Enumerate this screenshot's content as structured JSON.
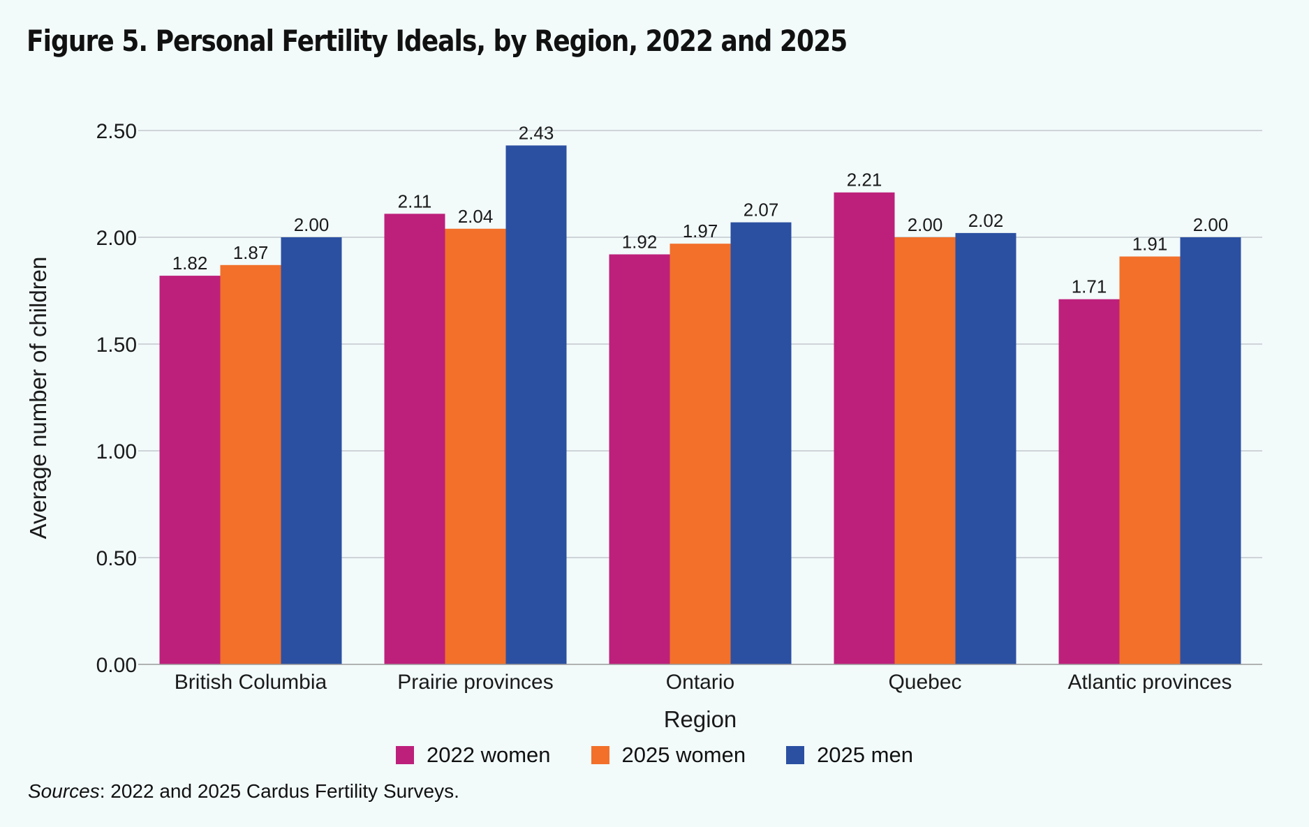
{
  "chart_data": {
    "type": "bar",
    "title": "Figure 5. Personal Fertility Ideals, by Region, 2022 and 2025",
    "xlabel": "Region",
    "ylabel": "Average number of children",
    "ylim": [
      0,
      2.5
    ],
    "yticks": [
      "0.00",
      "0.50",
      "1.00",
      "1.50",
      "2.00",
      "2.50"
    ],
    "grid": true,
    "legend_position": "bottom",
    "categories": [
      "British Columbia",
      "Prairie provinces",
      "Ontario",
      "Quebec",
      "Atlantic provinces"
    ],
    "series": [
      {
        "name": "2022 women",
        "color": "#bd207b",
        "values": [
          1.82,
          2.11,
          1.92,
          2.21,
          1.71
        ],
        "labels": [
          "1.82",
          "2.11",
          "1.92",
          "2.21",
          "1.71"
        ]
      },
      {
        "name": "2025 women",
        "color": "#f2702a",
        "values": [
          1.87,
          2.04,
          1.97,
          2.0,
          1.91
        ],
        "labels": [
          "1.87",
          "2.04",
          "1.97",
          "2.00",
          "1.91"
        ]
      },
      {
        "name": "2025 men",
        "color": "#2b50a2",
        "values": [
          2.0,
          2.43,
          2.07,
          2.02,
          2.0
        ],
        "labels": [
          "2.00",
          "2.43",
          "2.07",
          "2.02",
          "2.00"
        ]
      }
    ]
  },
  "sources": {
    "label": "Sources",
    "text": ": 2022 and 2025 Cardus Fertility Surveys."
  }
}
